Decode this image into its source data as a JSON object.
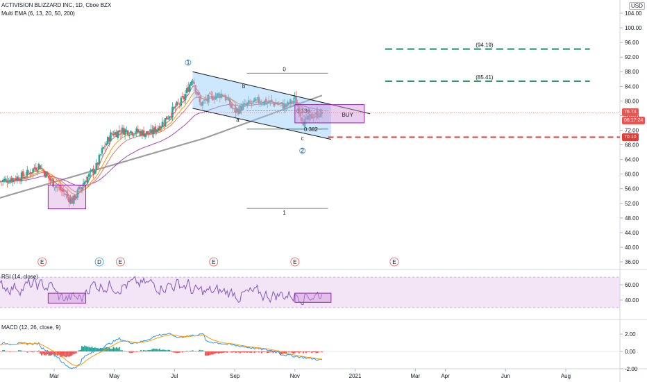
{
  "header": {
    "title": "ACTIVISION BLIZZARD INC, 1D, Cboe BZX",
    "ema_label": "Multi EMA (6, 13, 20, 50, 200)",
    "currency": "USD"
  },
  "price_badges": {
    "last": "76.74",
    "countdown": "06:17:24",
    "stop": "70.10"
  },
  "colors": {
    "up": "#26a69a",
    "down": "#ef5350",
    "ema6": "#ef5350",
    "ema13": "#ff9800",
    "ema20": "#e57373",
    "ema50": "#ab47bc",
    "ema200": "#9e9e9e",
    "channel": "#90caf9",
    "box": "#ce93d8",
    "target": "#1b8a5a",
    "stop": "#e53935",
    "rsi": "#7e57c2",
    "macd": "#2196f3",
    "signal": "#ff9800"
  },
  "chart_data": [
    {
      "type": "candlestick",
      "title": "ACTIVISION BLIZZARD INC, 1D, Cboe BZX",
      "y_range": [
        35,
        105
      ],
      "y_ticks": [
        "104.00",
        "100.00",
        "96.00",
        "92.00",
        "88.00",
        "84.00",
        "80.00",
        "76.00",
        "72.00",
        "68.00",
        "64.00",
        "60.00",
        "56.00",
        "52.00",
        "48.00",
        "44.00",
        "40.00",
        "36.00"
      ],
      "x_ticks": [
        "Mar",
        "May",
        "Jul",
        "Sep",
        "Nov",
        "2021",
        "Mar",
        "Apr",
        "Jun",
        "Aug"
      ],
      "x_tick_pos": [
        1.0,
        3.0,
        5.0,
        7.0,
        9.0,
        11.0,
        13.0,
        14.0,
        16.0,
        18.0
      ],
      "month_range": [
        -0.8,
        19.8
      ],
      "wave_labels": [
        "1",
        "b",
        "a",
        "c",
        "2"
      ],
      "fib_labels": [
        "0",
        "1",
        "0.136",
        "0.382"
      ],
      "targets": [
        {
          "label": "(94.19)",
          "value": 94.19
        },
        {
          "label": "(85.41)",
          "value": 85.41
        }
      ],
      "stop": {
        "label": "70.10",
        "value": 70.1
      },
      "buy_label": "BUY",
      "earnings_marks": [
        "E",
        "D",
        "E",
        "E",
        "E",
        "E"
      ],
      "earnings_pos": [
        0.6,
        2.5,
        3.2,
        6.3,
        9.0,
        12.3
      ]
    },
    {
      "type": "line",
      "title": "RSI (14, close)",
      "y_ticks": [
        "60.00",
        "40.00"
      ],
      "y_range": [
        30,
        75
      ],
      "bands": [
        70,
        30
      ]
    },
    {
      "type": "histogram",
      "title": "MACD (12, 26, close, 9)",
      "y_ticks": [
        "2.00",
        "0.00",
        "-2.00"
      ],
      "y_range": [
        -3,
        3.5
      ]
    }
  ]
}
